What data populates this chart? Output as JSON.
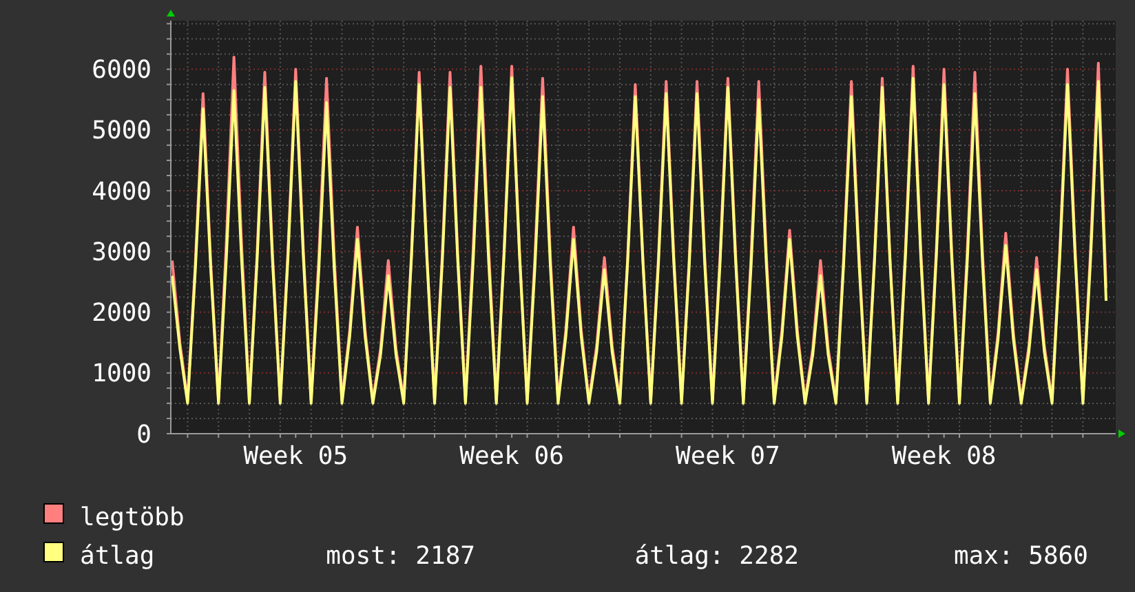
{
  "chart_data": {
    "type": "line",
    "categories": [
      null,
      null,
      null,
      null,
      null,
      null,
      null,
      null,
      null,
      null,
      null,
      null,
      null,
      null,
      null,
      null,
      "Week 05",
      null,
      null,
      null,
      null,
      null,
      null,
      null,
      null,
      null,
      null,
      null,
      null,
      null,
      null,
      null,
      null,
      null,
      null,
      null,
      null,
      null,
      null,
      null,
      null,
      null,
      null,
      null,
      "Week 06",
      null,
      null,
      null,
      null,
      null,
      null,
      null,
      null,
      null,
      null,
      null,
      null,
      null,
      null,
      null,
      null,
      null,
      null,
      null,
      null,
      null,
      null,
      null,
      null,
      null,
      null,
      null,
      "Week 07",
      null,
      null,
      null,
      null,
      null,
      null,
      null,
      null,
      null,
      null,
      null,
      null,
      null,
      null,
      null,
      null,
      null,
      null,
      null,
      null,
      null,
      null,
      null,
      null,
      null,
      null,
      null,
      "Week 08",
      null,
      null,
      null,
      null,
      null,
      null,
      null,
      null,
      null,
      null,
      null,
      null,
      null,
      null,
      null,
      null,
      null,
      null,
      null,
      null,
      null
    ],
    "series": [
      {
        "name": "legtöbb",
        "color": "#ff7f7f",
        "values": [
          2850,
          1500,
          550,
          2800,
          5600,
          2800,
          550,
          3100,
          6200,
          3100,
          550,
          2950,
          5950,
          2950,
          550,
          3000,
          6000,
          3000,
          550,
          2900,
          5850,
          2900,
          550,
          1700,
          3400,
          1700,
          550,
          1400,
          2850,
          1400,
          550,
          2950,
          5950,
          2950,
          550,
          2950,
          5950,
          2950,
          550,
          3050,
          6050,
          3050,
          550,
          3000,
          6050,
          3000,
          550,
          2900,
          5850,
          2900,
          550,
          1700,
          3400,
          1700,
          550,
          1450,
          2900,
          1450,
          550,
          2850,
          5750,
          2850,
          550,
          2900,
          5800,
          2900,
          550,
          2900,
          5800,
          2900,
          550,
          2950,
          5850,
          2950,
          550,
          2900,
          5800,
          2900,
          550,
          1700,
          3350,
          1700,
          550,
          1400,
          2850,
          1400,
          550,
          2900,
          5800,
          2900,
          550,
          2900,
          5850,
          2900,
          550,
          3000,
          6050,
          3000,
          550,
          3000,
          6000,
          3000,
          550,
          2950,
          5950,
          2950,
          550,
          1650,
          3300,
          1650,
          550,
          1450,
          2900,
          1450,
          550,
          3000,
          6000,
          3000,
          550,
          3050,
          6100,
          2400
        ]
      },
      {
        "name": "átlag",
        "color": "#ffff80",
        "values": [
          2600,
          1400,
          500,
          2700,
          5350,
          2700,
          500,
          2850,
          5650,
          2850,
          500,
          2850,
          5700,
          2850,
          500,
          2900,
          5800,
          2900,
          500,
          2700,
          5450,
          2700,
          500,
          1600,
          3200,
          1600,
          500,
          1300,
          2600,
          1300,
          500,
          2900,
          5750,
          2900,
          500,
          2850,
          5700,
          2850,
          500,
          2850,
          5700,
          2850,
          500,
          2950,
          5860,
          2950,
          500,
          2750,
          5550,
          2750,
          500,
          1600,
          3200,
          1600,
          500,
          1350,
          2700,
          1350,
          500,
          2800,
          5550,
          2800,
          500,
          2800,
          5600,
          2800,
          500,
          2800,
          5600,
          2800,
          500,
          2850,
          5700,
          2850,
          500,
          2750,
          5500,
          2750,
          500,
          1600,
          3200,
          1600,
          500,
          1300,
          2600,
          1300,
          500,
          2800,
          5550,
          2800,
          500,
          2850,
          5700,
          2850,
          500,
          2900,
          5850,
          2900,
          500,
          2900,
          5750,
          2900,
          500,
          2800,
          5600,
          2800,
          500,
          1550,
          3100,
          1550,
          500,
          1350,
          2700,
          1350,
          500,
          2900,
          5750,
          2900,
          500,
          2900,
          5800,
          2187
        ]
      }
    ],
    "ylim": [
      0,
      6800
    ],
    "yticks": [
      0,
      {
        "value": 250,
        "label": null
      },
      {
        "value": 500,
        "label": null
      },
      {
        "value": 750,
        "label": null
      },
      1000,
      {
        "value": 1250,
        "label": null
      },
      {
        "value": 1500,
        "label": null
      },
      {
        "value": 1750,
        "label": null
      },
      2000,
      {
        "value": 2250,
        "label": null
      },
      {
        "value": 2500,
        "label": null
      },
      {
        "value": 2750,
        "label": null
      },
      3000,
      {
        "value": 3250,
        "label": null
      },
      {
        "value": 3500,
        "label": null
      },
      {
        "value": 3750,
        "label": null
      },
      4000,
      {
        "value": 4250,
        "label": null
      },
      {
        "value": 4500,
        "label": null
      },
      {
        "value": 4750,
        "label": null
      },
      5000,
      {
        "value": 5250,
        "label": null
      },
      {
        "value": 5500,
        "label": null
      },
      {
        "value": 5750,
        "label": null
      },
      6000,
      {
        "value": 6250,
        "label": null
      },
      {
        "value": 6500,
        "label": null
      },
      {
        "value": 6750,
        "label": null
      }
    ],
    "grid": true,
    "legend": "bottom",
    "annotations": [
      "most: 2187",
      "átlag: 2282",
      "max: 5860"
    ]
  }
}
